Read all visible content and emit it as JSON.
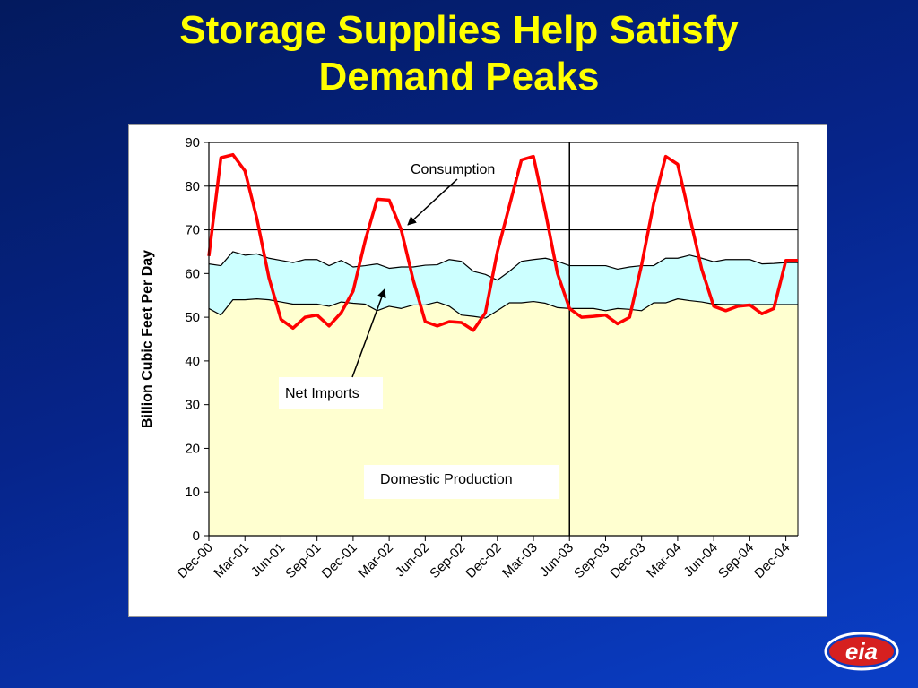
{
  "slide": {
    "title_line1": "Storage Supplies Help Satisfy",
    "title_line2": "Demand Peaks",
    "logo_text": "eia"
  },
  "colors": {
    "background": "#06248a",
    "title": "#ffff00",
    "domestic_production": "#ffffd0",
    "net_imports": "#ccffff",
    "consumption": "#ff0000"
  },
  "chart_data": {
    "type": "area",
    "title": "",
    "xlabel": "",
    "ylabel": "Billion Cubic Feet Per Day",
    "ylim": [
      0,
      90
    ],
    "yticks": [
      0,
      10,
      20,
      30,
      40,
      50,
      60,
      70,
      80,
      90
    ],
    "grid": "horizontal at 70, 80, 90",
    "x_start": "Dec-00",
    "x_step_months": 1,
    "x_tick_labels": [
      "Dec-00",
      "Mar-01",
      "Jun-01",
      "Sep-01",
      "Dec-01",
      "Mar-02",
      "Jun-02",
      "Sep-02",
      "Dec-02",
      "Mar-03",
      "Jun-03",
      "Sep-03",
      "Dec-03",
      "Mar-04",
      "Jun-04",
      "Sep-04",
      "Dec-04"
    ],
    "divider_at": "Jun-03",
    "series": [
      {
        "name": "Domestic Production",
        "kind": "stacked-area",
        "values": [
          52,
          50.5,
          54,
          54,
          54.2,
          54,
          53.5,
          53,
          53,
          53,
          52.5,
          53.5,
          53.2,
          53,
          51.5,
          52.5,
          52,
          52.8,
          52.8,
          53.5,
          52.5,
          50.5,
          50.2,
          49.8,
          51.5,
          53.3,
          53.3,
          53.6,
          53.2,
          52.2,
          52,
          52,
          52,
          51.5,
          52,
          51.8,
          51.5,
          53.3,
          53.3,
          54.2,
          53.8,
          53.5,
          53,
          52.9,
          52.9,
          52.9,
          52.9,
          52.9,
          52.9,
          52.9
        ]
      },
      {
        "name": "Net Imports",
        "kind": "stacked-area-top",
        "values": [
          62.2,
          61.8,
          65,
          64.2,
          64.5,
          63.5,
          63,
          62.5,
          63.2,
          63.2,
          61.8,
          63,
          61.5,
          61.8,
          62.2,
          61.2,
          61.5,
          61.5,
          61.9,
          62,
          63.2,
          62.8,
          60.5,
          59.8,
          58.5,
          60.5,
          62.8,
          63.2,
          63.5,
          62.8,
          61.8,
          61.8,
          61.8,
          61.8,
          61,
          61.5,
          61.8,
          61.8,
          63.5,
          63.5,
          64.2,
          63.5,
          62.7,
          63.2,
          63.2,
          63.2,
          62.2,
          62.3,
          62.5,
          62.5
        ]
      },
      {
        "name": "Consumption",
        "kind": "line",
        "values": [
          64,
          86.5,
          87.2,
          83.5,
          72.5,
          59,
          49.5,
          47.5,
          50,
          50.5,
          48,
          51,
          56,
          67.5,
          77,
          76.8,
          70,
          58.5,
          49,
          48,
          49,
          48.8,
          47,
          51,
          65,
          75.5,
          86,
          86.8,
          74,
          60,
          52,
          50,
          50.2,
          50.5,
          48.5,
          50,
          62,
          76,
          86.8,
          85,
          73,
          61,
          52.5,
          51.5,
          52.5,
          52.8,
          50.8,
          52,
          63,
          63
        ]
      }
    ],
    "annotations": {
      "consumption": "Consumption",
      "net_imports": "Net Imports",
      "domestic_production": "Domestic Production"
    }
  }
}
